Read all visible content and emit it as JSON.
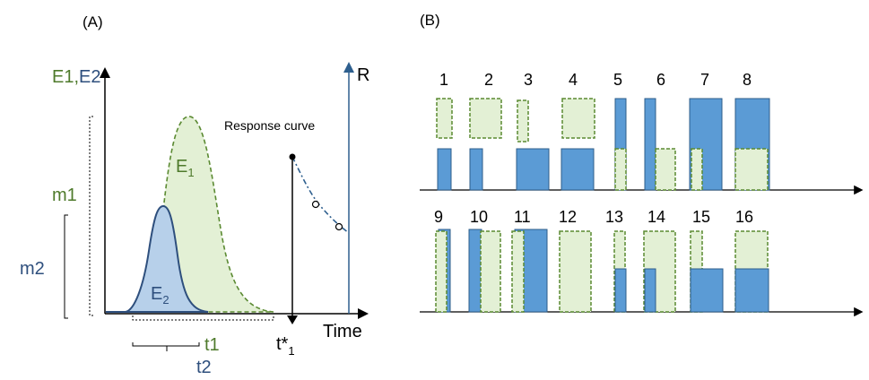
{
  "panel_a": {
    "label": "(A)",
    "y_axis_label_e1": "E1",
    "y_axis_label_sep": ",",
    "y_axis_label_e2": "E2",
    "right_axis_label": "R",
    "x_axis_label": "Time",
    "response_curve_label": "Response curve",
    "curve_e1_label": "E",
    "curve_e1_sub": "1",
    "curve_e2_label": "E",
    "curve_e2_sub": "2",
    "m1_label": "m1",
    "m2_label": "m2",
    "t1_label": "t1",
    "t2_label": "t2",
    "tstar_label": "t*",
    "tstar_sub": "1",
    "colors": {
      "e1": "#4e7a2b",
      "e2": "#2e4f7d",
      "fill_e1": "#e3f0d5",
      "fill_e2": "#b7d0ea"
    }
  },
  "panel_b": {
    "label": "(B)",
    "row1_numbers": [
      "1",
      "2",
      "3",
      "4",
      "5",
      "6",
      "7",
      "8"
    ],
    "row2_numbers": [
      "9",
      "10",
      "11",
      "12",
      "13",
      "14",
      "15",
      "16"
    ],
    "colors": {
      "blue_fill": "#5b9bd5",
      "blue_stroke": "#2e5c8a",
      "green_fill": "#e3f0d5",
      "green_stroke": "#5b8a32"
    }
  }
}
